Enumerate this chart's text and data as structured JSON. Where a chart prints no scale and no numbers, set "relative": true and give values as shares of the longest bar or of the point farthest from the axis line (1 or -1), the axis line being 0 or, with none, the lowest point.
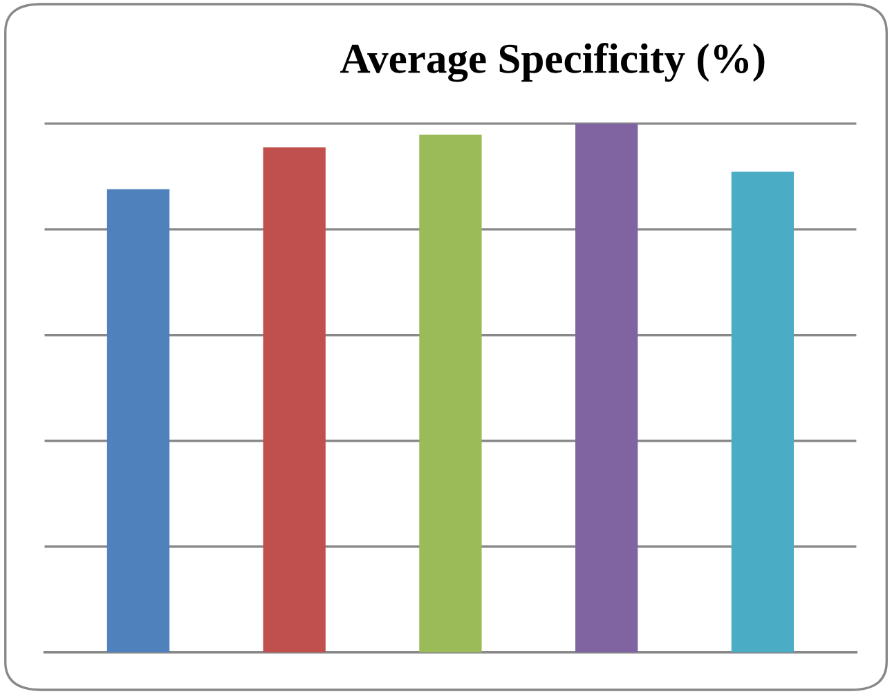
{
  "chart_data": {
    "type": "bar",
    "title": "Average Specificity (%)",
    "relative": true,
    "categories": [
      null,
      null,
      null,
      null,
      null
    ],
    "values": [
      0.876,
      0.955,
      0.979,
      1,
      0.909
    ],
    "colors": [
      "#4f81bd",
      "#c0504d",
      "#9bbb59",
      "#8064a2",
      "#4bacc6"
    ],
    "grid": "y",
    "legend": false
  }
}
